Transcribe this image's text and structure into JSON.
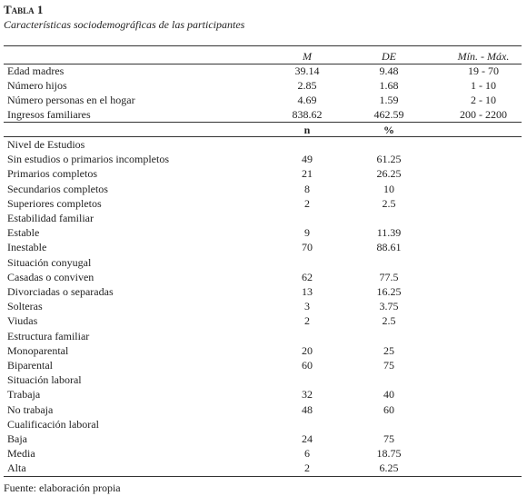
{
  "header": {
    "title": "Tabla 1",
    "subtitle": "Características sociodemográficas de las participantes"
  },
  "table": {
    "columns": [
      "M",
      "DE",
      "Mín. - Máx."
    ],
    "rows": [
      {
        "label": "Edad madres",
        "values": [
          39.14,
          9.48,
          "19 - 70"
        ]
      },
      {
        "label": "Número hijos",
        "values": [
          2.85,
          1.68,
          "1 - 10"
        ]
      },
      {
        "label": "Número personas en el hogar",
        "values": [
          4.69,
          1.59,
          "2 - 10"
        ]
      },
      {
        "label": "Ingresos familiares",
        "values": [
          838.62,
          462.59,
          "200 - 2200"
        ]
      }
    ],
    "columns2": [
      "n",
      "%"
    ],
    "sections": [
      {
        "title": "Nivel de Estudios",
        "rows": [
          {
            "label": "Sin estudios o primarios incompletos",
            "values": [
              49,
              61.25
            ]
          },
          {
            "label": "Primarios completos",
            "values": [
              21,
              26.25
            ]
          },
          {
            "label": "Secundarios completos",
            "values": [
              8,
              10
            ]
          },
          {
            "label": "Superiores completos",
            "values": [
              2,
              2.5
            ]
          }
        ]
      },
      {
        "title": "Estabilidad familiar",
        "rows": [
          {
            "label": "Estable",
            "values": [
              9,
              11.39
            ]
          },
          {
            "label": "Inestable",
            "values": [
              70,
              88.61
            ]
          }
        ]
      },
      {
        "title": "Situación conyugal",
        "rows": [
          {
            "label": "Casadas o conviven",
            "values": [
              62,
              77.5
            ]
          },
          {
            "label": "Divorciadas o separadas",
            "values": [
              13,
              16.25
            ]
          },
          {
            "label": "Solteras",
            "values": [
              3,
              3.75
            ]
          },
          {
            "label": "Viudas",
            "values": [
              2,
              2.5
            ]
          }
        ]
      },
      {
        "title": "Estructura familiar",
        "rows": [
          {
            "label": "Monoparental",
            "values": [
              20,
              25
            ]
          },
          {
            "label": "Biparental",
            "values": [
              60,
              75
            ]
          }
        ]
      },
      {
        "title": "Situación laboral",
        "rows": [
          {
            "label": "Trabaja",
            "values": [
              32,
              40
            ]
          },
          {
            "label": "No trabaja",
            "values": [
              48,
              60
            ]
          }
        ]
      },
      {
        "title": "Cualificación laboral",
        "rows": [
          {
            "label": "Baja",
            "values": [
              24,
              75
            ]
          },
          {
            "label": "Media",
            "values": [
              6,
              18.75
            ]
          },
          {
            "label": "Alta",
            "values": [
              2,
              6.25
            ]
          }
        ]
      }
    ]
  },
  "footer": "Fuente: elaboración propia"
}
